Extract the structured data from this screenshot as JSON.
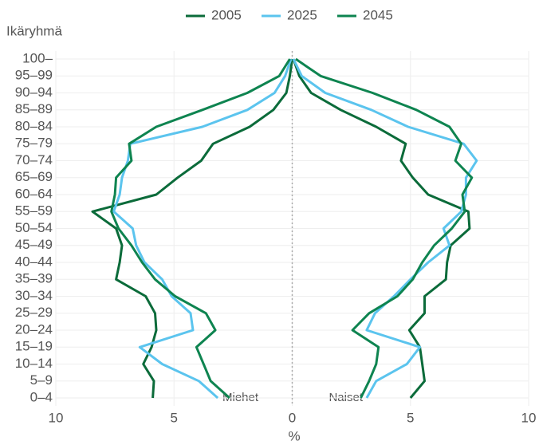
{
  "chart_data": {
    "type": "line",
    "title": "Ikäryhmä",
    "xlabel": "%",
    "annotations": [
      "Miehet",
      "Naiset"
    ],
    "categories": [
      "0–4",
      "5–9",
      "10–14",
      "15–19",
      "20–24",
      "25–29",
      "30–34",
      "35–39",
      "40–44",
      "45–49",
      "50–54",
      "55–59",
      "60–64",
      "65–69",
      "70–74",
      "75–79",
      "80–84",
      "85–89",
      "90–94",
      "95–99",
      "100–"
    ],
    "xlim": [
      -10,
      10
    ],
    "xticks": [
      {
        "value": -10,
        "label": "10"
      },
      {
        "value": -5,
        "label": "5"
      },
      0,
      5,
      10
    ],
    "grid": true,
    "series": [
      {
        "name": "2005",
        "color": "#0b6b3a",
        "men": [
          -5.9,
          -5.85,
          -6.3,
          -5.95,
          -5.75,
          -5.8,
          -6.2,
          -7.45,
          -7.3,
          -7.2,
          -7.45,
          -8.45,
          -5.75,
          -4.85,
          -3.85,
          -3.35,
          -1.8,
          -0.8,
          -0.25,
          -0.1,
          0
        ],
        "women": [
          5.0,
          5.6,
          5.5,
          5.4,
          4.95,
          5.6,
          5.6,
          6.5,
          6.55,
          6.7,
          7.5,
          7.45,
          5.75,
          5.1,
          4.6,
          4.8,
          3.55,
          2.05,
          0.8,
          0.3,
          0.05
        ]
      },
      {
        "name": "2025",
        "color": "#5bc4ee",
        "men": [
          -3.15,
          -3.95,
          -5.5,
          -6.45,
          -4.2,
          -4.3,
          -5.1,
          -5.5,
          -6.25,
          -6.6,
          -6.75,
          -7.55,
          -7.3,
          -7.2,
          -6.95,
          -6.85,
          -3.8,
          -1.9,
          -0.75,
          -0.3,
          -0.05
        ],
        "women": [
          3.15,
          3.55,
          4.85,
          5.4,
          3.15,
          3.5,
          4.3,
          5.0,
          5.75,
          6.65,
          6.4,
          7.15,
          7.35,
          7.35,
          7.8,
          7.25,
          4.9,
          3.35,
          1.4,
          0.4,
          0.05
        ]
      },
      {
        "name": "2045",
        "color": "#0e8450",
        "men": [
          -2.65,
          -3.45,
          -3.75,
          -4.05,
          -3.25,
          -3.65,
          -4.95,
          -5.8,
          -6.35,
          -6.8,
          -7.35,
          -7.65,
          -7.5,
          -7.45,
          -6.8,
          -6.9,
          -5.75,
          -3.8,
          -1.9,
          -0.55,
          -0.1
        ],
        "women": [
          2.9,
          3.25,
          3.55,
          3.65,
          2.55,
          3.25,
          4.45,
          5.1,
          5.5,
          6.0,
          6.75,
          7.3,
          7.2,
          7.6,
          6.9,
          7.15,
          6.65,
          5.25,
          3.4,
          1.2,
          0.15
        ]
      }
    ]
  }
}
